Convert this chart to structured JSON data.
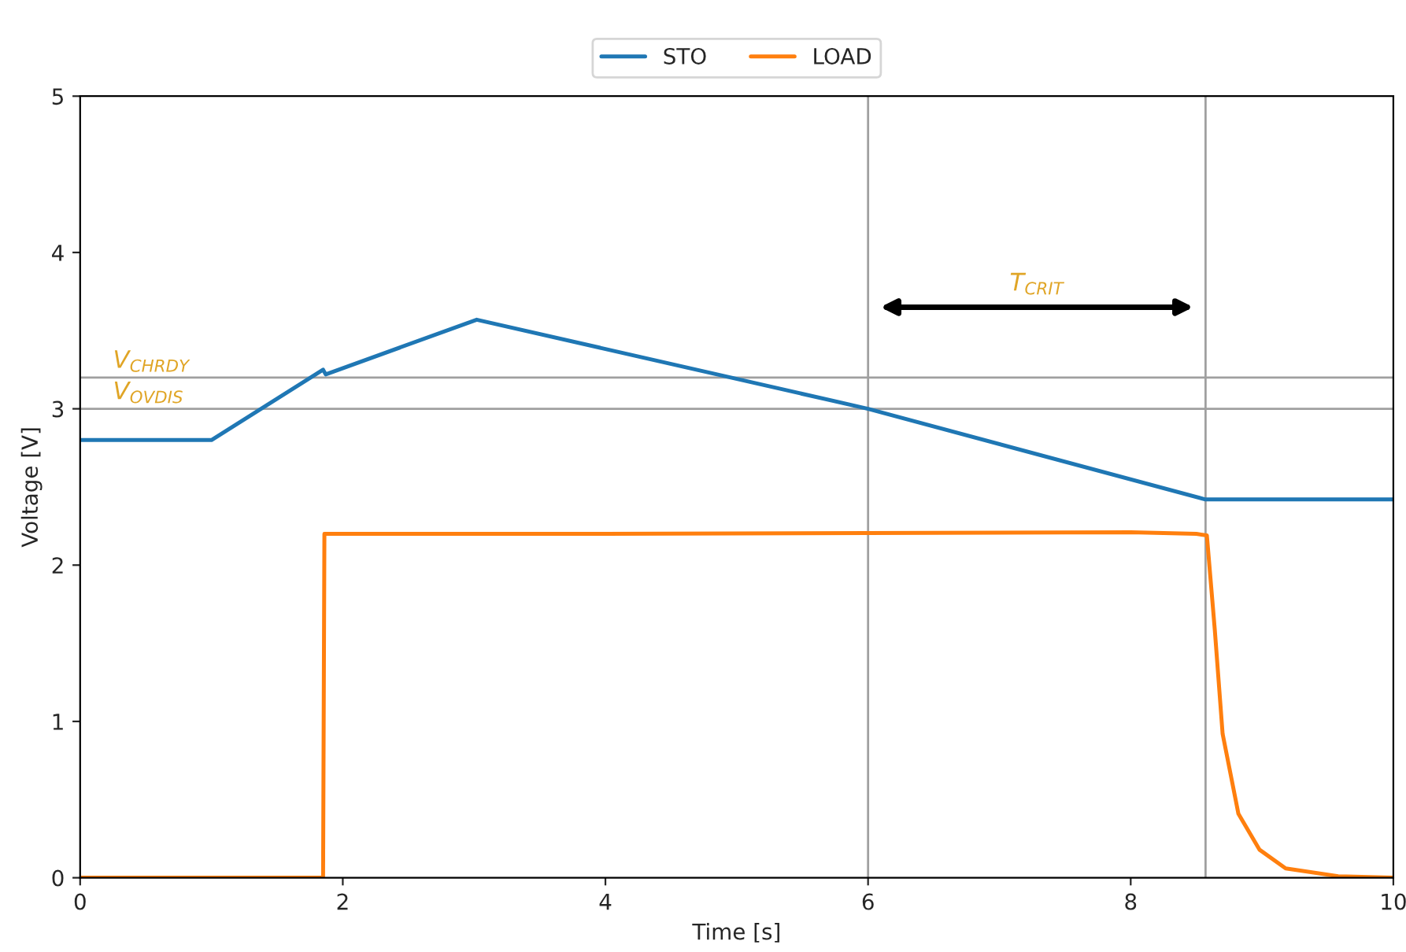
{
  "chart_data": {
    "type": "line",
    "xlabel": "Time [s]",
    "ylabel": "Voltage [V]",
    "xlim": [
      0,
      10
    ],
    "xticks": [
      0,
      2,
      4,
      6,
      8,
      10
    ],
    "ylim": [
      0,
      5
    ],
    "yticks": [
      0,
      1,
      2,
      3,
      4,
      5
    ],
    "grid": false,
    "legend": "top",
    "marker": "none",
    "line_style": "solid",
    "series": [
      {
        "name": "STO",
        "color": "#1f77b4",
        "x": [
          0,
          1.0,
          1.85,
          1.87,
          3.02,
          6.0,
          8.57,
          10
        ],
        "values": [
          2.8,
          2.8,
          3.25,
          3.22,
          3.57,
          3.0,
          2.42,
          2.42
        ]
      },
      {
        "name": "LOAD",
        "color": "#ff7f0e",
        "x": [
          0,
          1.85,
          1.86,
          4,
          8.0,
          8.5,
          8.58,
          8.64,
          8.7,
          8.82,
          8.98,
          9.18,
          9.58,
          10
        ],
        "values": [
          0,
          0,
          2.2,
          2.2,
          2.21,
          2.2,
          2.19,
          1.59,
          0.92,
          0.41,
          0.18,
          0.06,
          0.01,
          0
        ]
      }
    ],
    "ref_lines": [
      {
        "axis": "y",
        "value": 3.2,
        "label": "V$_{CHRDY}$",
        "color": "#a0a0a0"
      },
      {
        "axis": "y",
        "value": 3.0,
        "label": "V$_{OVDIS}$",
        "color": "#a0a0a0"
      },
      {
        "axis": "x",
        "value": 6.0,
        "color": "#a0a0a0"
      },
      {
        "axis": "x",
        "value": 8.57,
        "color": "#a0a0a0"
      }
    ],
    "annotations": [
      "T$_{CRIT}$"
    ]
  }
}
